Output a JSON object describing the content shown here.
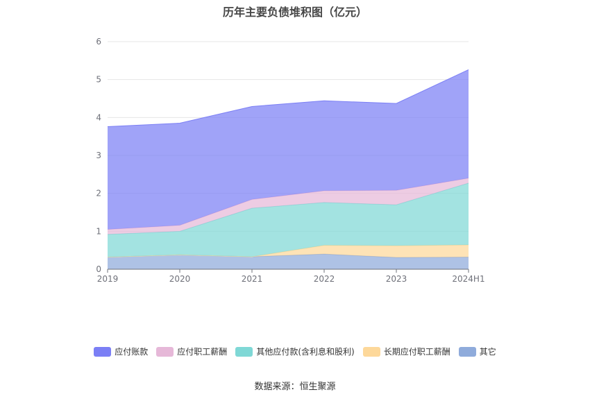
{
  "chart_data": {
    "type": "area",
    "title": "历年主要负债堆积图（亿元）",
    "categories": [
      "2019",
      "2020",
      "2021",
      "2022",
      "2023",
      "2024H1"
    ],
    "ylim": [
      0,
      6
    ],
    "yticks": [
      "0",
      "1",
      "2",
      "3",
      "4",
      "5",
      "6"
    ],
    "stacked": true,
    "grid": true,
    "legend_position": "bottom",
    "series": [
      {
        "name": "其它",
        "color": "#8fabdb",
        "values": [
          0.32,
          0.38,
          0.33,
          0.4,
          0.31,
          0.32
        ]
      },
      {
        "name": "长期应付职工薪酬",
        "color": "#fdd89a",
        "values": [
          0.0,
          0.0,
          0.0,
          0.23,
          0.31,
          0.32
        ]
      },
      {
        "name": "其他应付款(含利息和股利)",
        "color": "#7fd8d6",
        "values": [
          0.6,
          0.62,
          1.28,
          1.13,
          1.08,
          1.63
        ]
      },
      {
        "name": "应付职工薪酬",
        "color": "#e6b8d8",
        "values": [
          0.13,
          0.16,
          0.23,
          0.31,
          0.38,
          0.13
        ]
      },
      {
        "name": "应付账款",
        "color": "#7b7ff5",
        "values": [
          2.71,
          2.69,
          2.45,
          2.37,
          2.29,
          2.86
        ]
      }
    ]
  },
  "source": "数据来源：恒生聚源"
}
